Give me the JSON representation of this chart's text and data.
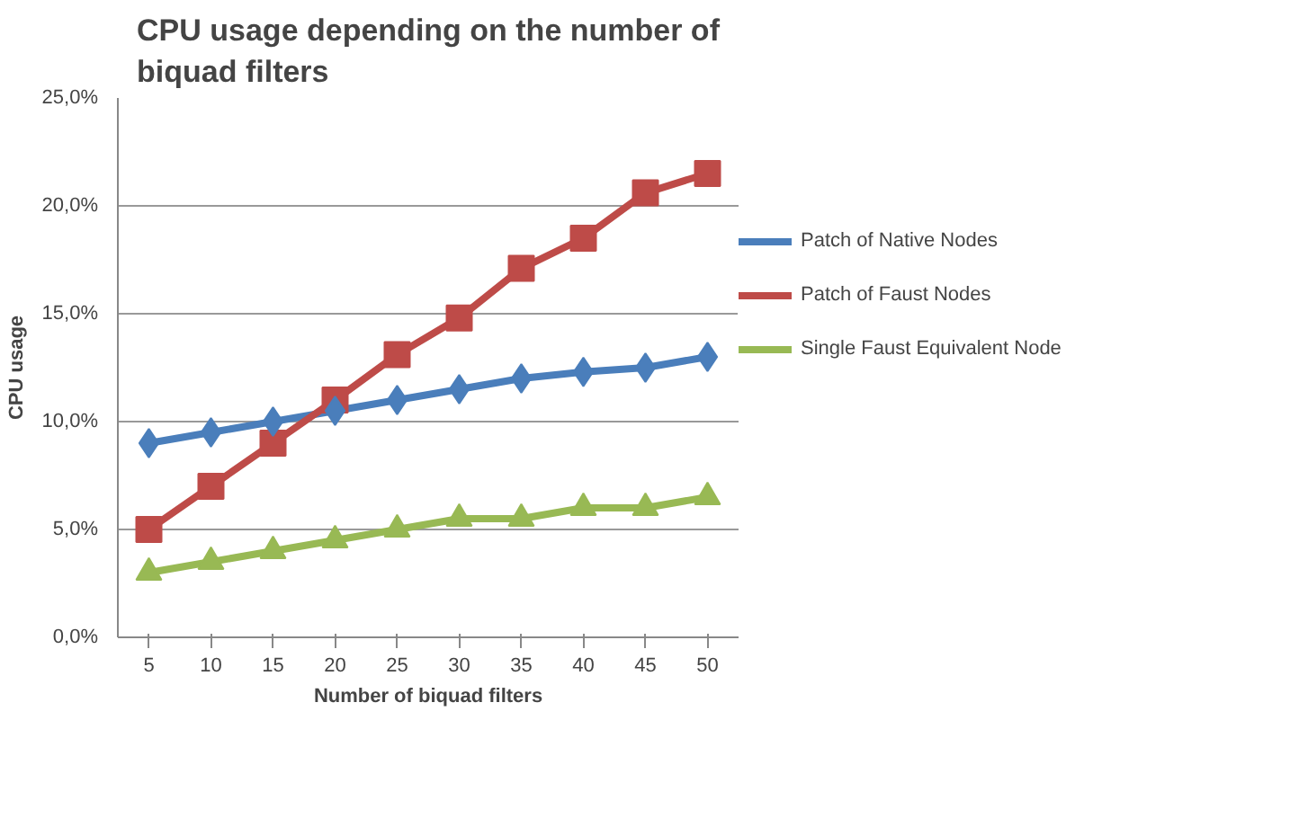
{
  "chart_data": {
    "type": "line",
    "title": "CPU usage depending on the number of biquad filters",
    "xlabel": "Number of biquad filters",
    "ylabel": "CPU usage",
    "categories": [
      "5",
      "10",
      "15",
      "20",
      "25",
      "30",
      "35",
      "40",
      "45",
      "50"
    ],
    "series": [
      {
        "name": "Patch of Native Nodes",
        "color": "#4a7ebb",
        "marker": "diamond",
        "values": [
          9,
          9.5,
          10,
          10.5,
          11,
          11.5,
          12,
          12.3,
          12.5,
          13
        ]
      },
      {
        "name": "Patch of Faust Nodes",
        "color": "#be4b48",
        "marker": "square",
        "values": [
          5,
          7,
          9,
          11,
          13.1,
          14.8,
          17.1,
          18.5,
          20.6,
          21.5
        ]
      },
      {
        "name": "Single Faust Equivalent Node",
        "color": "#98b954",
        "marker": "triangle",
        "values": [
          3,
          3.5,
          4,
          4.5,
          5,
          5.5,
          5.5,
          6,
          6,
          6.5
        ]
      }
    ],
    "ylim": [
      0,
      25
    ],
    "yticks": [
      {
        "value": 0,
        "label": "0,0%"
      },
      {
        "value": 5,
        "label": "5,0%"
      },
      {
        "value": 10,
        "label": "10,0%"
      },
      {
        "value": 15,
        "label": "15,0%"
      },
      {
        "value": 20,
        "label": "20,0%"
      },
      {
        "value": 25,
        "label": "25,0%"
      }
    ],
    "grid": "y",
    "legend": "right",
    "line_style": "solid"
  }
}
